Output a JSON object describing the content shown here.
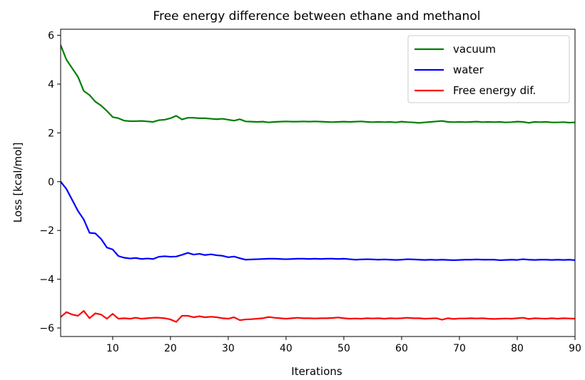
{
  "chart_data": {
    "type": "line",
    "title": "Free energy difference between ethane and methanol",
    "xlabel": "Iterations",
    "ylabel": "Loss [kcal/mol]",
    "xlim": [
      1,
      90
    ],
    "ylim": [
      -6.35,
      6.25
    ],
    "xticks": [
      10,
      20,
      30,
      40,
      50,
      60,
      70,
      80,
      90
    ],
    "yticks": [
      -6,
      -4,
      -2,
      0,
      2,
      4,
      6
    ],
    "grid": false,
    "legend_position": "top-right",
    "x": [
      1,
      2,
      3,
      4,
      5,
      6,
      7,
      8,
      9,
      10,
      11,
      12,
      13,
      14,
      15,
      16,
      17,
      18,
      19,
      20,
      21,
      22,
      23,
      24,
      25,
      26,
      27,
      28,
      29,
      30,
      31,
      32,
      33,
      34,
      35,
      36,
      37,
      38,
      39,
      40,
      41,
      42,
      43,
      44,
      45,
      46,
      47,
      48,
      49,
      50,
      51,
      52,
      53,
      54,
      55,
      56,
      57,
      58,
      59,
      60,
      61,
      62,
      63,
      64,
      65,
      66,
      67,
      68,
      69,
      70,
      71,
      72,
      73,
      74,
      75,
      76,
      77,
      78,
      79,
      80,
      81,
      82,
      83,
      84,
      85,
      86,
      87,
      88,
      89,
      90
    ],
    "series": [
      {
        "name": "vacuum",
        "color": "#008000",
        "values": [
          5.6,
          5.0,
          4.65,
          4.3,
          3.72,
          3.55,
          3.28,
          3.12,
          2.9,
          2.65,
          2.6,
          2.5,
          2.48,
          2.48,
          2.49,
          2.47,
          2.45,
          2.52,
          2.54,
          2.6,
          2.7,
          2.55,
          2.62,
          2.62,
          2.6,
          2.6,
          2.58,
          2.56,
          2.58,
          2.54,
          2.5,
          2.56,
          2.47,
          2.46,
          2.45,
          2.46,
          2.43,
          2.45,
          2.46,
          2.47,
          2.46,
          2.46,
          2.47,
          2.46,
          2.47,
          2.46,
          2.45,
          2.44,
          2.45,
          2.46,
          2.45,
          2.46,
          2.47,
          2.45,
          2.44,
          2.45,
          2.44,
          2.45,
          2.43,
          2.46,
          2.44,
          2.43,
          2.41,
          2.43,
          2.45,
          2.47,
          2.49,
          2.45,
          2.44,
          2.45,
          2.44,
          2.45,
          2.46,
          2.44,
          2.45,
          2.44,
          2.45,
          2.43,
          2.44,
          2.46,
          2.45,
          2.41,
          2.45,
          2.44,
          2.45,
          2.43,
          2.43,
          2.44,
          2.42,
          2.43
        ]
      },
      {
        "name": "water",
        "color": "#0000ff",
        "values": [
          0.0,
          -0.3,
          -0.75,
          -1.2,
          -1.55,
          -2.1,
          -2.12,
          -2.35,
          -2.7,
          -2.78,
          -3.05,
          -3.12,
          -3.15,
          -3.13,
          -3.17,
          -3.15,
          -3.17,
          -3.08,
          -3.06,
          -3.08,
          -3.07,
          -3.0,
          -2.92,
          -2.99,
          -2.96,
          -3.01,
          -2.98,
          -3.02,
          -3.04,
          -3.1,
          -3.07,
          -3.14,
          -3.2,
          -3.19,
          -3.18,
          -3.17,
          -3.16,
          -3.16,
          -3.17,
          -3.18,
          -3.17,
          -3.16,
          -3.16,
          -3.17,
          -3.16,
          -3.17,
          -3.16,
          -3.16,
          -3.17,
          -3.16,
          -3.18,
          -3.2,
          -3.19,
          -3.18,
          -3.19,
          -3.2,
          -3.19,
          -3.2,
          -3.21,
          -3.2,
          -3.18,
          -3.19,
          -3.2,
          -3.21,
          -3.2,
          -3.21,
          -3.2,
          -3.21,
          -3.22,
          -3.21,
          -3.2,
          -3.2,
          -3.19,
          -3.2,
          -3.2,
          -3.2,
          -3.22,
          -3.21,
          -3.2,
          -3.21,
          -3.18,
          -3.2,
          -3.21,
          -3.2,
          -3.2,
          -3.21,
          -3.2,
          -3.21,
          -3.2,
          -3.22
        ]
      },
      {
        "name": "Free energy dif.",
        "color": "#ff0000",
        "values": [
          -5.55,
          -5.35,
          -5.45,
          -5.5,
          -5.3,
          -5.6,
          -5.4,
          -5.45,
          -5.62,
          -5.42,
          -5.62,
          -5.6,
          -5.62,
          -5.58,
          -5.62,
          -5.6,
          -5.58,
          -5.58,
          -5.6,
          -5.65,
          -5.75,
          -5.5,
          -5.5,
          -5.56,
          -5.52,
          -5.56,
          -5.54,
          -5.56,
          -5.6,
          -5.62,
          -5.56,
          -5.68,
          -5.65,
          -5.64,
          -5.62,
          -5.6,
          -5.55,
          -5.58,
          -5.6,
          -5.62,
          -5.6,
          -5.58,
          -5.6,
          -5.6,
          -5.61,
          -5.6,
          -5.6,
          -5.59,
          -5.57,
          -5.6,
          -5.62,
          -5.61,
          -5.62,
          -5.6,
          -5.61,
          -5.6,
          -5.62,
          -5.6,
          -5.61,
          -5.6,
          -5.58,
          -5.6,
          -5.6,
          -5.62,
          -5.61,
          -5.6,
          -5.66,
          -5.6,
          -5.63,
          -5.61,
          -5.61,
          -5.6,
          -5.61,
          -5.6,
          -5.62,
          -5.63,
          -5.62,
          -5.61,
          -5.62,
          -5.6,
          -5.58,
          -5.63,
          -5.6,
          -5.61,
          -5.62,
          -5.6,
          -5.62,
          -5.6,
          -5.61,
          -5.62
        ]
      }
    ]
  }
}
